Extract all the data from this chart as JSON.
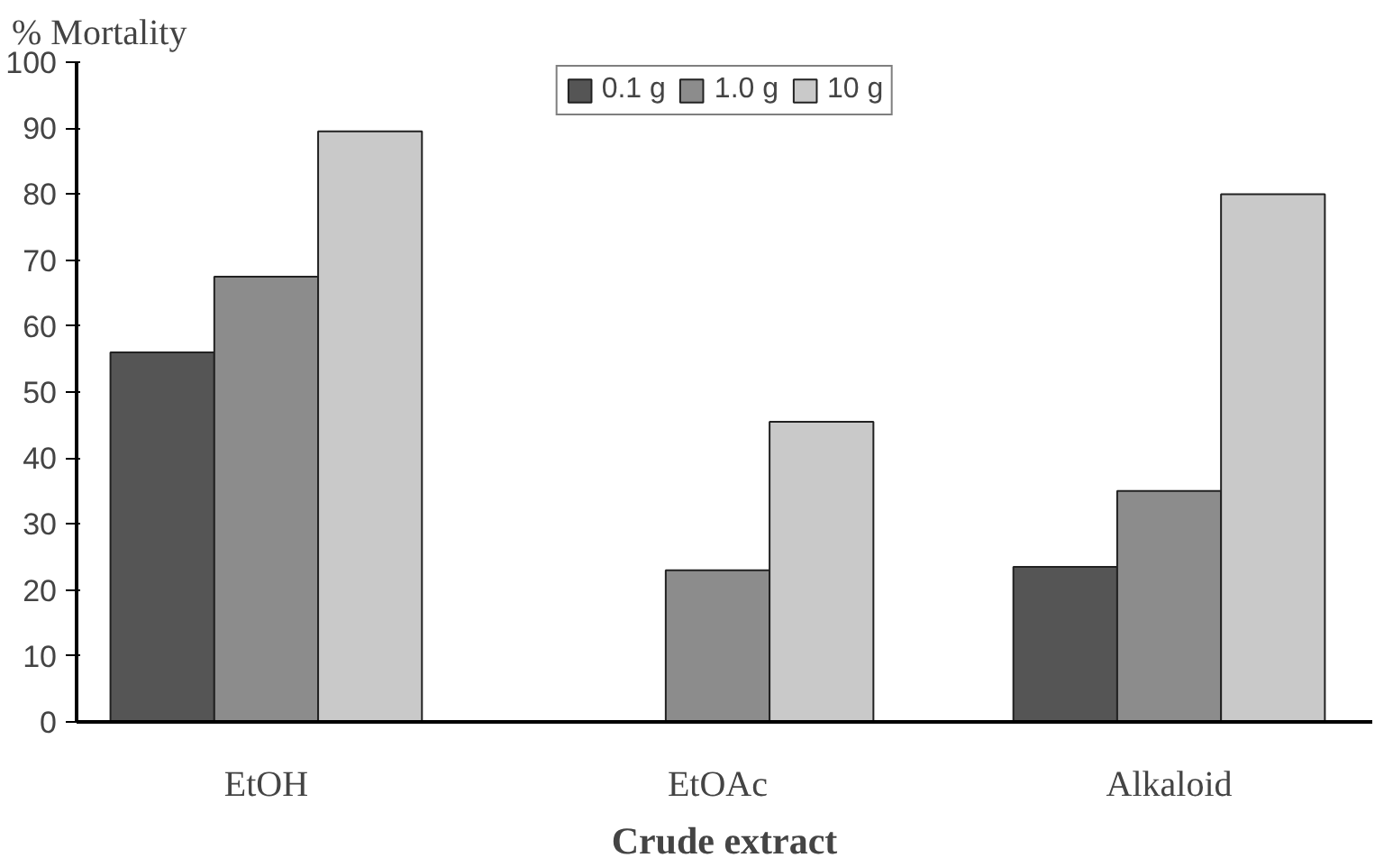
{
  "chart_data": {
    "type": "bar",
    "ylabel": "% Mortality",
    "xlabel": "Crude extract",
    "categories": [
      "EtOH",
      "EtOAc",
      "Alkaloid"
    ],
    "series": [
      {
        "name": "0.1 g",
        "color": "#555555",
        "values": [
          56,
          null,
          23.5
        ]
      },
      {
        "name": "1.0 g",
        "color": "#8c8c8c",
        "values": [
          67.5,
          23,
          35
        ]
      },
      {
        "name": "10 g",
        "color": "#c9c9c9",
        "values": [
          89.5,
          45.5,
          80
        ]
      }
    ],
    "ylim": [
      0,
      100
    ],
    "yticks": [
      0,
      10,
      20,
      30,
      40,
      50,
      60,
      70,
      80,
      90,
      100
    ],
    "grid": false,
    "legend": "top"
  }
}
